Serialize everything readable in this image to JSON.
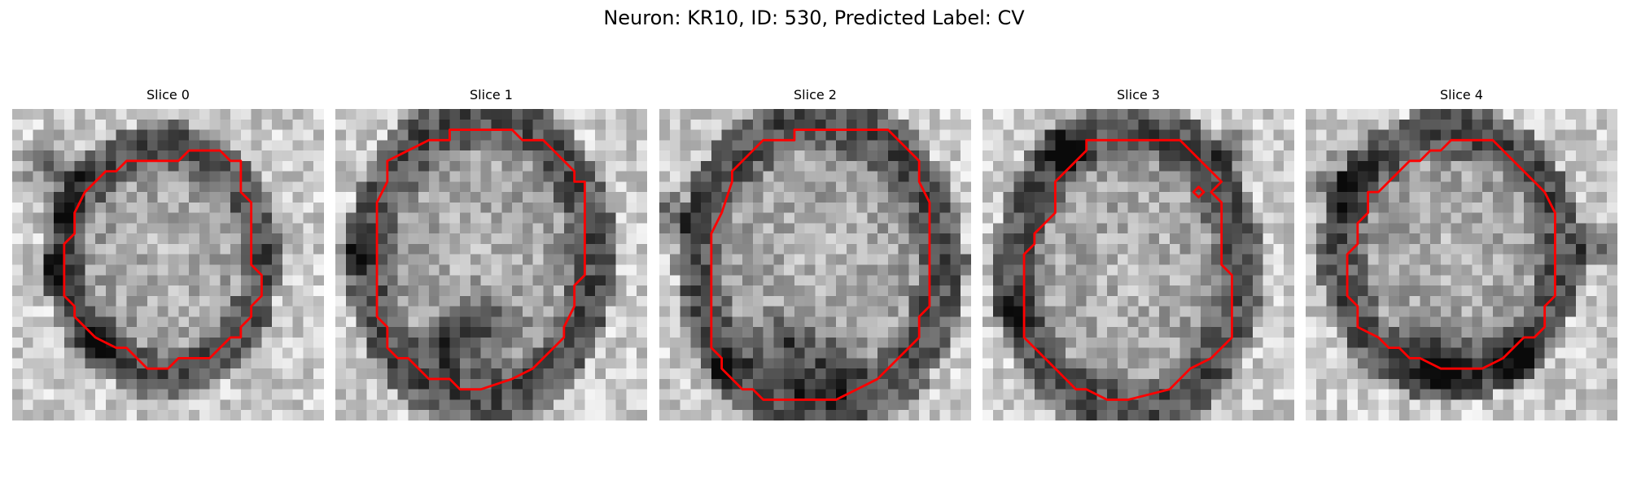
{
  "figure": {
    "title": "Neuron: KR10, ID: 530, Predicted Label: CV"
  },
  "colors": {
    "background": "#ffffff",
    "contour": "#ff0000",
    "colormap": "grayscale"
  },
  "panels": [
    {
      "title": "Slice 0",
      "seed": 11
    },
    {
      "title": "Slice 1",
      "seed": 23
    },
    {
      "title": "Slice 2",
      "seed": 37
    },
    {
      "title": "Slice 3",
      "seed": 41
    },
    {
      "title": "Slice 4",
      "seed": 59
    }
  ]
}
